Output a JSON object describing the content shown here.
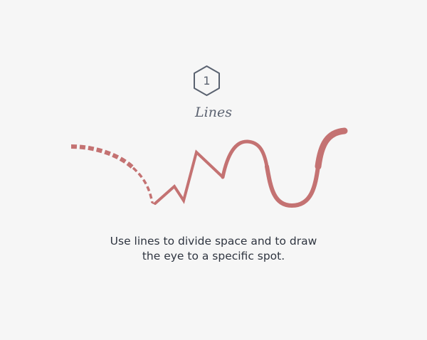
{
  "step": {
    "number": "1",
    "icon": "hexagon-badge-icon"
  },
  "title": "Lines",
  "caption": {
    "line1": "Use lines to divide space and to draw",
    "line2": "the eye to a specific spot."
  },
  "colors": {
    "background": "#f6f6f6",
    "line": "#c47272",
    "badge_outline": "#5a6270",
    "title_text": "#5b6270",
    "caption_text": "#2f3540"
  }
}
